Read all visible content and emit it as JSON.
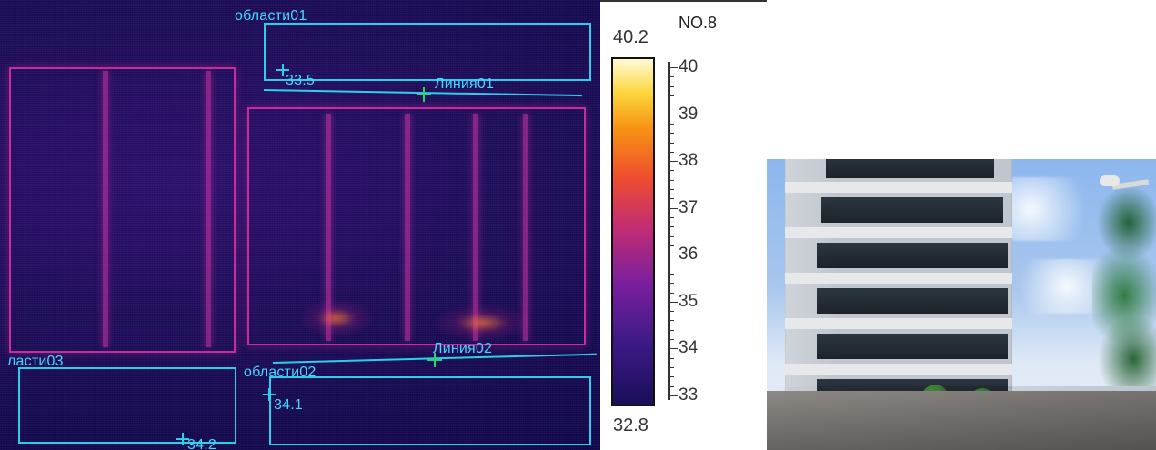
{
  "thermal": {
    "roi_labels": {
      "area01": "области01",
      "area02": "области02",
      "area03": "ласти03"
    },
    "line_labels": {
      "line01": "Линия01",
      "line02": "Линия02"
    },
    "spot_values": {
      "v1": "33.5",
      "v2": "34.1",
      "v3": "34.2"
    }
  },
  "scale": {
    "no_label": "NO.8",
    "max": "40.2",
    "min": "32.8",
    "ticks": [
      "40",
      "39",
      "38",
      "37",
      "36",
      "35",
      "34",
      "33"
    ],
    "accent_color": "#2ad0ea"
  },
  "photo": {
    "description_name": "building-photo"
  }
}
